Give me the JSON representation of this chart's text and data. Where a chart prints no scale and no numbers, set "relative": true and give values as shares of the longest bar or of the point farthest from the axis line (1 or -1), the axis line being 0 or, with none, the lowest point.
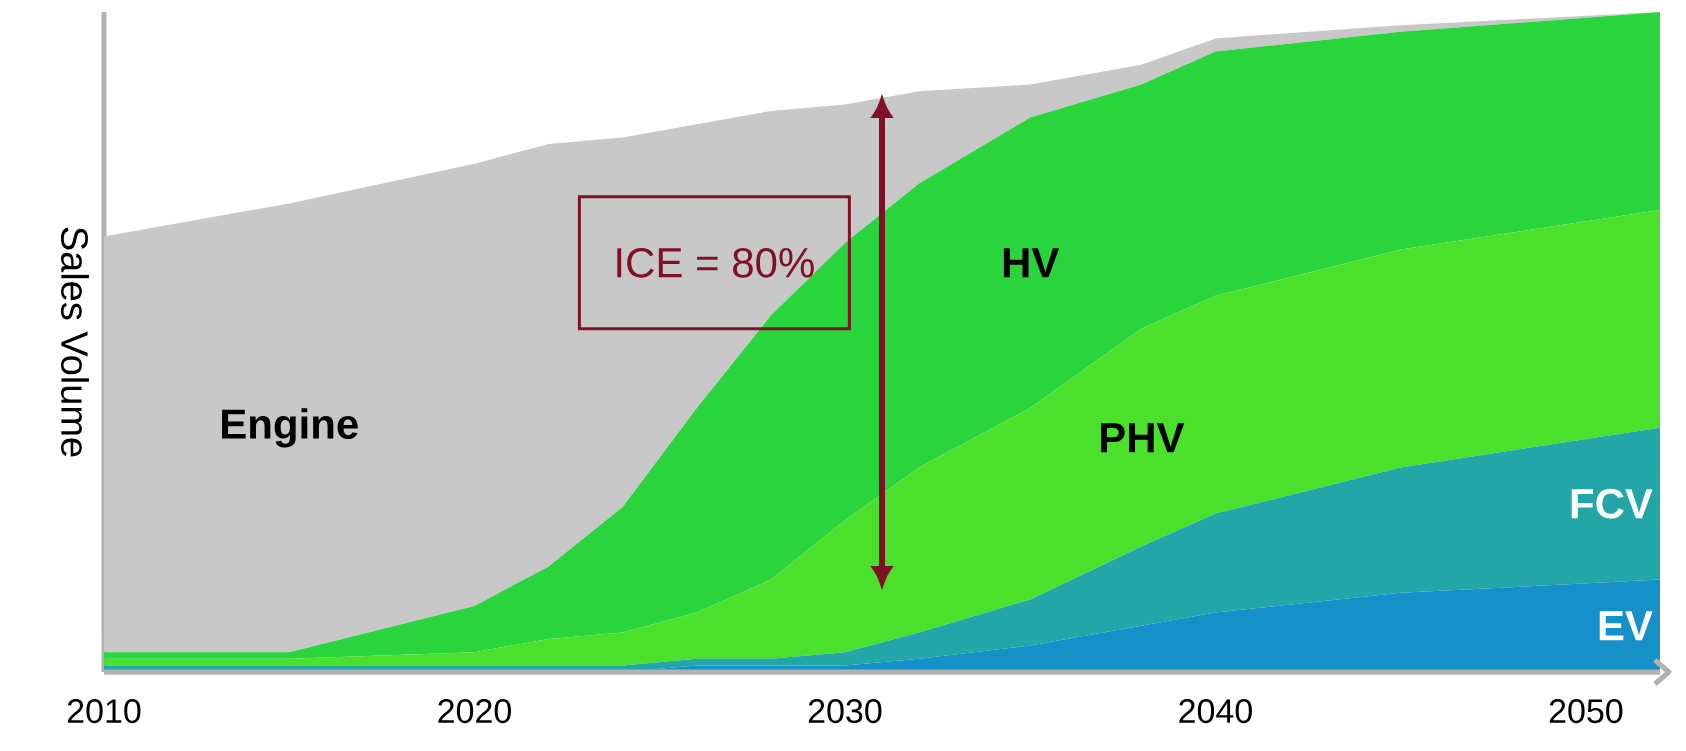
{
  "chart_data": {
    "type": "area",
    "stacked": true,
    "relative": true,
    "ylabel": "Sales Volume",
    "x": [
      2010,
      2015,
      2020,
      2022,
      2024,
      2026,
      2028,
      2030,
      2032,
      2035,
      2038,
      2040,
      2045,
      2052
    ],
    "xlim": [
      2010,
      2052
    ],
    "xticks": [
      2010,
      2020,
      2030,
      2040,
      2050
    ],
    "series": [
      {
        "name": "EV",
        "color": "#1690c8",
        "values": [
          0,
          0,
          0,
          0,
          0,
          0.01,
          0.01,
          0.01,
          0.02,
          0.04,
          0.07,
          0.09,
          0.12,
          0.14
        ]
      },
      {
        "name": "FCV",
        "color": "#23a6a8",
        "values": [
          0.01,
          0.01,
          0.01,
          0.01,
          0.01,
          0.01,
          0.01,
          0.02,
          0.04,
          0.07,
          0.12,
          0.15,
          0.19,
          0.23
        ]
      },
      {
        "name": "PHV",
        "color": "#4ae02c",
        "values": [
          0.01,
          0.01,
          0.02,
          0.04,
          0.05,
          0.07,
          0.12,
          0.2,
          0.25,
          0.29,
          0.33,
          0.33,
          0.33,
          0.33
        ]
      },
      {
        "name": "HV",
        "color": "#2ad43c",
        "values": [
          0.01,
          0.01,
          0.07,
          0.11,
          0.19,
          0.31,
          0.4,
          0.42,
          0.43,
          0.44,
          0.37,
          0.37,
          0.33,
          0.3
        ]
      },
      {
        "name": "Engine",
        "color": "#c8c8c8",
        "values": [
          0.63,
          0.68,
          0.67,
          0.64,
          0.56,
          0.43,
          0.31,
          0.21,
          0.14,
          0.05,
          0.03,
          0.02,
          0.01,
          0
        ]
      }
    ],
    "annotations": [
      "ICE = 80%"
    ]
  }
}
